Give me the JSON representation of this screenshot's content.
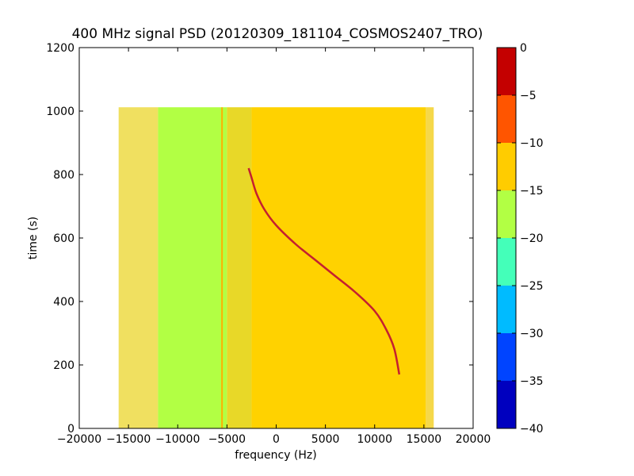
{
  "chart_data": {
    "type": "heatmap",
    "title": "400 MHz signal PSD (20120309_181104_COSMOS2407_TRO)",
    "xlabel": "frequency (Hz)",
    "ylabel": "time (s)",
    "xlim": [
      -20000,
      20000
    ],
    "ylim": [
      0,
      1200
    ],
    "x_ticks": [
      -20000,
      -15000,
      -10000,
      -5000,
      0,
      5000,
      10000,
      15000,
      20000
    ],
    "y_ticks": [
      0,
      200,
      400,
      600,
      800,
      1000,
      1200
    ],
    "grid": false,
    "data_extent": {
      "x": [
        -16000,
        16000
      ],
      "y": [
        0,
        1012
      ]
    },
    "colorbar": {
      "range": [
        -40,
        0
      ],
      "ticks": [
        0,
        -5,
        -10,
        -15,
        -20,
        -25,
        -30,
        -35,
        -40
      ],
      "levels": [
        {
          "from": -40,
          "to": -35,
          "color": "#0000bf"
        },
        {
          "from": -35,
          "to": -30,
          "color": "#0044ff"
        },
        {
          "from": -30,
          "to": -25,
          "color": "#00bbff"
        },
        {
          "from": -25,
          "to": -20,
          "color": "#44ffb9"
        },
        {
          "from": -20,
          "to": -15,
          "color": "#b2ff44"
        },
        {
          "from": -15,
          "to": -10,
          "color": "#ffcc00"
        },
        {
          "from": -10,
          "to": -5,
          "color": "#ff5500"
        },
        {
          "from": -5,
          "to": 0,
          "color": "#c40000"
        }
      ]
    },
    "background_bands": [
      {
        "x": [
          -16000,
          -12000
        ],
        "level": -15,
        "color": "#f0e060"
      },
      {
        "x": [
          -12000,
          -5000
        ],
        "level": -17,
        "color": "#b2ff44"
      },
      {
        "x": [
          -5000,
          -2500
        ],
        "level": -14,
        "color": "#e8d828"
      },
      {
        "x": [
          -2500,
          15200
        ],
        "level": -12,
        "color": "#ffd200"
      },
      {
        "x": [
          15200,
          16000
        ],
        "level": -14,
        "color": "#f5d84a"
      }
    ],
    "vertical_lines": [
      {
        "x": -5500,
        "color": "#ffb000"
      }
    ],
    "signal_trace": {
      "name": "",
      "color": "#c42030",
      "points": [
        {
          "x": -2800,
          "y": 820
        },
        {
          "x": -2500,
          "y": 790
        },
        {
          "x": -2000,
          "y": 740
        },
        {
          "x": -1200,
          "y": 690
        },
        {
          "x": 0,
          "y": 640
        },
        {
          "x": 2000,
          "y": 580
        },
        {
          "x": 4000,
          "y": 530
        },
        {
          "x": 6000,
          "y": 480
        },
        {
          "x": 8000,
          "y": 430
        },
        {
          "x": 10000,
          "y": 370
        },
        {
          "x": 11200,
          "y": 310
        },
        {
          "x": 12000,
          "y": 250
        },
        {
          "x": 12500,
          "y": 170
        }
      ]
    }
  }
}
